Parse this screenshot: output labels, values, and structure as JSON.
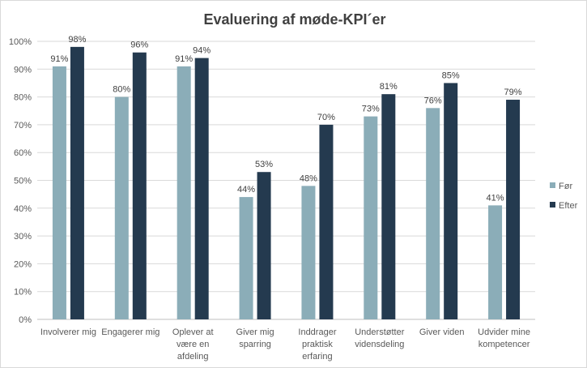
{
  "chart_data": {
    "type": "bar",
    "title": "Evaluering af møde-KPI´er",
    "xlabel": "",
    "ylabel": "",
    "ylim": [
      0,
      100
    ],
    "yticks": [
      "0%",
      "10%",
      "20%",
      "30%",
      "40%",
      "50%",
      "60%",
      "70%",
      "80%",
      "90%",
      "100%"
    ],
    "grid": true,
    "legend_position": "right",
    "categories": [
      [
        "Involverer mig"
      ],
      [
        "Engagerer mig"
      ],
      [
        "Oplever at",
        "være en",
        "afdeling"
      ],
      [
        "Giver mig",
        "sparring"
      ],
      [
        "Inddrager",
        "praktisk",
        "erfaring"
      ],
      [
        "Understøtter",
        "vidensdeling"
      ],
      [
        "Giver viden"
      ],
      [
        "Udvider mine",
        "kompetencer"
      ]
    ],
    "series": [
      {
        "name": "Før",
        "color": "#8badb8",
        "values": [
          91,
          80,
          91,
          44,
          48,
          73,
          76,
          41
        ],
        "labels": [
          "91%",
          "80%",
          "91%",
          "44%",
          "48%",
          "73%",
          "76%",
          "41%"
        ]
      },
      {
        "name": "Efter",
        "color": "#243a4f",
        "values": [
          98,
          96,
          94,
          53,
          70,
          81,
          85,
          79
        ],
        "labels": [
          "98%",
          "96%",
          "94%",
          "53%",
          "70%",
          "81%",
          "85%",
          "79%"
        ]
      }
    ]
  }
}
